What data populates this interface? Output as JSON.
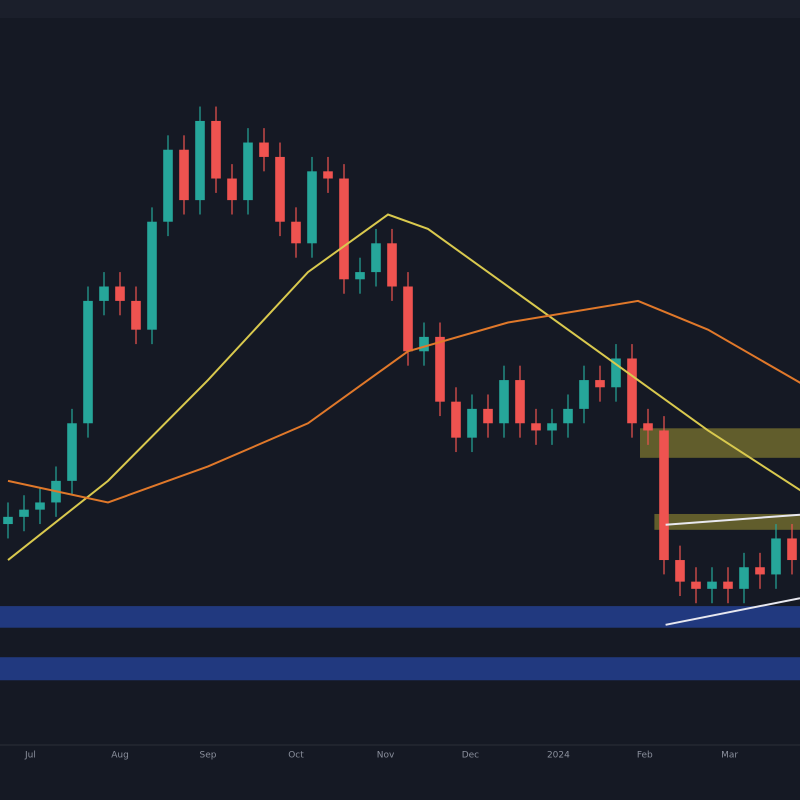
{
  "chart_data": {
    "type": "candlestick",
    "background": "#151924",
    "up_color": "#26a69a",
    "down_color": "#ef5350",
    "xlim": [
      -0.5,
      49.5
    ],
    "ylim": [
      0,
      102.8
    ],
    "xticks": [
      {
        "value": 1.4,
        "label": "Jul"
      },
      {
        "value": 7,
        "label": "Aug"
      },
      {
        "value": 12.5,
        "label": "Sep"
      },
      {
        "value": 18,
        "label": "Oct"
      },
      {
        "value": 23.6,
        "label": "Nov"
      },
      {
        "value": 28.9,
        "label": "Dec"
      },
      {
        "value": 34.4,
        "label": "2024"
      },
      {
        "value": 39.8,
        "label": "Feb"
      },
      {
        "value": 45.1,
        "label": "Mar"
      }
    ],
    "open": [
      30,
      31,
      32,
      33,
      36,
      44,
      61,
      63,
      61,
      57,
      72,
      82,
      75,
      86,
      78,
      75,
      83,
      81,
      72,
      69,
      79,
      78,
      64,
      65,
      69,
      63,
      54,
      56,
      47,
      42,
      46,
      44,
      50,
      44,
      43,
      44,
      46,
      50,
      49,
      53,
      44,
      43,
      25,
      22,
      21,
      22,
      21,
      24,
      23,
      28
    ],
    "high": [
      33,
      34,
      35,
      38,
      46,
      63,
      65,
      65,
      63,
      74,
      84,
      84,
      88,
      88,
      80,
      85,
      85,
      83,
      74,
      81,
      81,
      80,
      67,
      71,
      71,
      65,
      58,
      58,
      49,
      48,
      48,
      52,
      52,
      46,
      46,
      48,
      52,
      52,
      55,
      55,
      46,
      45,
      27,
      24,
      24,
      24,
      26,
      26,
      30,
      30
    ],
    "low": [
      28,
      29,
      30,
      31,
      34,
      42,
      59,
      59,
      55,
      55,
      70,
      73,
      73,
      76,
      73,
      73,
      79,
      70,
      67,
      67,
      76,
      62,
      62,
      63,
      61,
      52,
      52,
      45,
      40,
      40,
      42,
      42,
      42,
      41,
      41,
      42,
      44,
      47,
      47,
      42,
      41,
      23,
      20,
      19,
      19,
      19,
      19,
      21,
      21,
      23
    ],
    "close": [
      31,
      32,
      33,
      36,
      44,
      61,
      63,
      61,
      57,
      72,
      82,
      75,
      86,
      78,
      75,
      83,
      81,
      72,
      69,
      79,
      78,
      64,
      65,
      69,
      63,
      54,
      56,
      47,
      42,
      46,
      44,
      50,
      44,
      43,
      44,
      46,
      50,
      49,
      53,
      44,
      43,
      25,
      22,
      21,
      22,
      21,
      24,
      23,
      28,
      25
    ],
    "lines": [
      {
        "color": "#d9c94e",
        "x": [
          0,
          6.25,
          12.5,
          18.75,
          23.75,
          26.25,
          31.25,
          37.5,
          43.75,
          50
        ],
        "values": [
          25,
          36,
          50,
          65,
          73,
          71,
          63,
          53,
          43,
          34
        ]
      },
      {
        "color": "#e0782a",
        "x": [
          0,
          6.25,
          12.5,
          18.75,
          25,
          31.25,
          39.375,
          43.75,
          50
        ],
        "values": [
          36,
          33,
          38,
          44,
          54,
          58,
          61,
          57,
          49
        ]
      }
    ],
    "zones": [
      {
        "color": "#6e6a2e",
        "x_start": 39.5,
        "range": [
          39.2,
          43.3
        ]
      },
      {
        "color": "#6e6a2e",
        "x_start": 40.4,
        "range": [
          29.2,
          31.4
        ]
      },
      {
        "color": "#233f8f",
        "x_start": -0.5,
        "range": [
          15.6,
          18.6
        ]
      },
      {
        "color": "#233f8f",
        "x_start": -0.5,
        "range": [
          8.3,
          11.5
        ]
      }
    ],
    "trendlines": [
      {
        "color": "#e8e8f0",
        "x": [
          41.1,
          49.5
        ],
        "values": [
          29.9,
          31.3
        ]
      },
      {
        "color": "#e8e8f0",
        "x": [
          41.1,
          49.5
        ],
        "values": [
          16,
          19.7
        ]
      }
    ]
  }
}
